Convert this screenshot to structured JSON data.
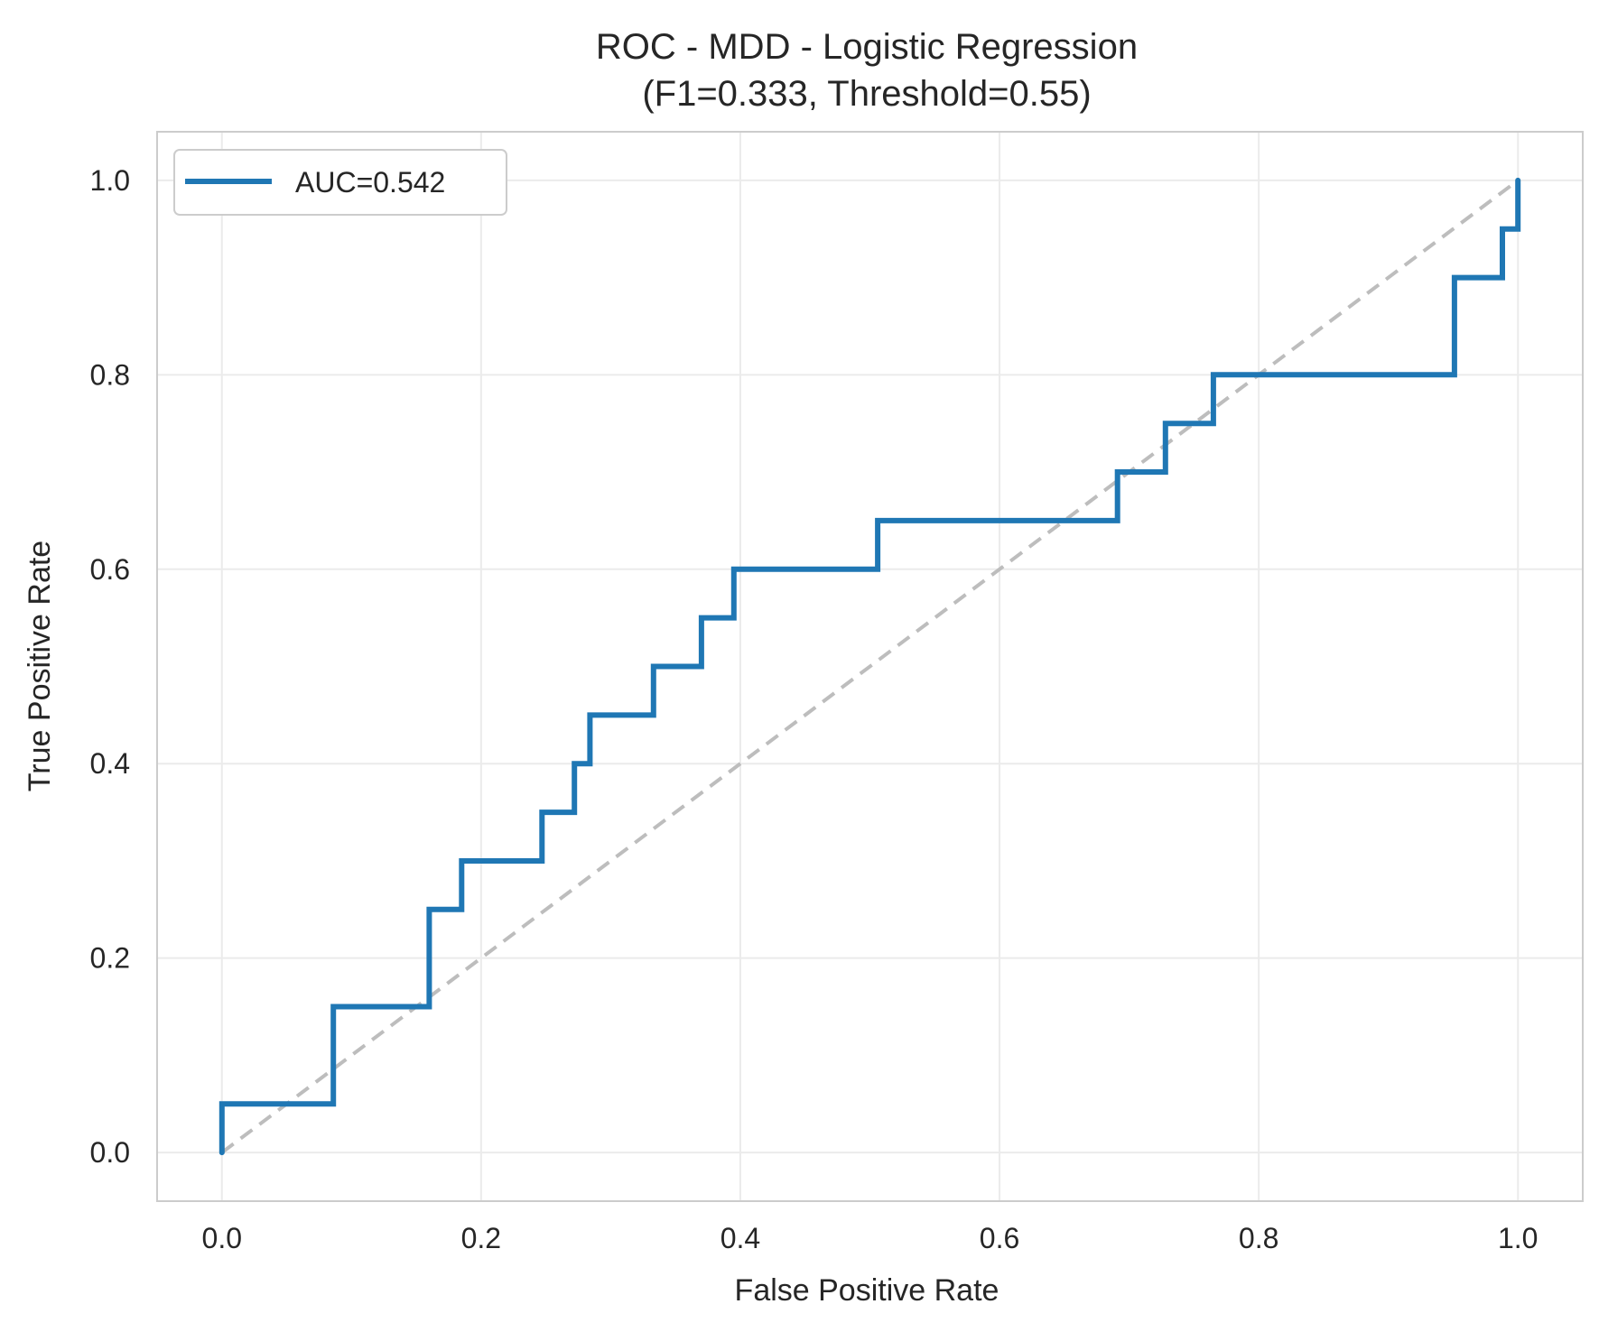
{
  "chart_data": {
    "type": "line",
    "title": "ROC - MDD - Logistic Regression",
    "subtitle": "(F1=0.333, Threshold=0.55)",
    "xlabel": "False Positive Rate",
    "ylabel": "True Positive Rate",
    "xlim": [
      -0.05,
      1.05
    ],
    "ylim": [
      -0.05,
      1.05
    ],
    "xticks": [
      "0.0",
      "0.2",
      "0.4",
      "0.6",
      "0.8",
      "1.0"
    ],
    "yticks": [
      "0.0",
      "0.2",
      "0.4",
      "0.6",
      "0.8",
      "1.0"
    ],
    "grid": true,
    "legend_position": "upper-left",
    "series": [
      {
        "name": "AUC=0.542",
        "color": "#1f77b4",
        "x": [
          0.0,
          0.0,
          0.086,
          0.086,
          0.16,
          0.16,
          0.185,
          0.185,
          0.247,
          0.247,
          0.272,
          0.272,
          0.284,
          0.284,
          0.333,
          0.333,
          0.37,
          0.37,
          0.395,
          0.395,
          0.506,
          0.506,
          0.691,
          0.691,
          0.728,
          0.728,
          0.765,
          0.765,
          0.951,
          0.951,
          0.988,
          0.988,
          1.0,
          1.0
        ],
        "y": [
          0.0,
          0.05,
          0.05,
          0.15,
          0.15,
          0.25,
          0.25,
          0.3,
          0.3,
          0.35,
          0.35,
          0.4,
          0.4,
          0.45,
          0.45,
          0.5,
          0.5,
          0.55,
          0.55,
          0.6,
          0.6,
          0.65,
          0.65,
          0.7,
          0.7,
          0.75,
          0.75,
          0.8,
          0.8,
          0.9,
          0.9,
          0.95,
          0.95,
          1.0
        ]
      }
    ],
    "reference_line": {
      "x": [
        0,
        1
      ],
      "y": [
        0,
        1
      ],
      "color": "#bdbdbd",
      "style": "dashed"
    }
  }
}
